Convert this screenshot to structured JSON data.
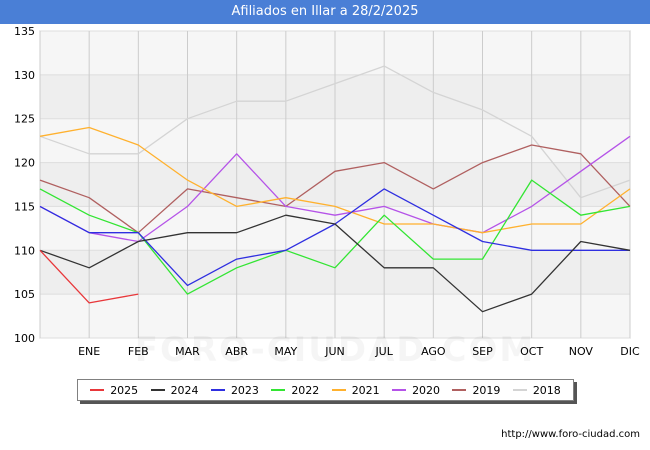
{
  "title": "Afiliados en Illar a 28/2/2025",
  "footer_url": "http://www.foro-ciudad.com",
  "watermark": "FORO-CIUDAD.COM",
  "chart_data": {
    "type": "line",
    "title": "Afiliados en Illar a 28/2/2025",
    "xlabel": "",
    "ylabel": "",
    "categories": [
      "",
      "ENE",
      "FEB",
      "MAR",
      "ABR",
      "MAY",
      "JUN",
      "JUL",
      "AGO",
      "SEP",
      "OCT",
      "NOV",
      "DIC"
    ],
    "ylim": [
      100,
      135
    ],
    "yticks": [
      100,
      105,
      110,
      115,
      120,
      125,
      130,
      135
    ],
    "grid": true,
    "legend_position": "bottom",
    "series": [
      {
        "name": "2025",
        "color": "#e8373a",
        "values": [
          110,
          104,
          105,
          null,
          null,
          null,
          null,
          null,
          null,
          null,
          null,
          null,
          null
        ]
      },
      {
        "name": "2024",
        "color": "#333333",
        "values": [
          110,
          108,
          111,
          112,
          112,
          114,
          113,
          108,
          108,
          103,
          105,
          111,
          110
        ]
      },
      {
        "name": "2023",
        "color": "#2f2fe0",
        "values": [
          115,
          112,
          112,
          106,
          109,
          110,
          113,
          117,
          114,
          111,
          110,
          110,
          110
        ]
      },
      {
        "name": "2022",
        "color": "#33e533",
        "values": [
          117,
          114,
          112,
          105,
          108,
          110,
          108,
          114,
          109,
          109,
          118,
          114,
          115
        ]
      },
      {
        "name": "2021",
        "color": "#ffb12e",
        "values": [
          123,
          124,
          122,
          118,
          115,
          116,
          115,
          113,
          113,
          112,
          113,
          113,
          117
        ]
      },
      {
        "name": "2020",
        "color": "#b553e8",
        "values": [
          115,
          112,
          111,
          115,
          121,
          115,
          114,
          115,
          113,
          112,
          115,
          119,
          123
        ]
      },
      {
        "name": "2019",
        "color": "#b06060",
        "values": [
          118,
          116,
          112,
          117,
          116,
          115,
          119,
          120,
          117,
          120,
          122,
          121,
          115
        ]
      },
      {
        "name": "2018",
        "color": "#d4d4d4",
        "values": [
          123,
          121,
          121,
          125,
          127,
          127,
          129,
          131,
          128,
          126,
          123,
          116,
          118
        ]
      }
    ]
  }
}
